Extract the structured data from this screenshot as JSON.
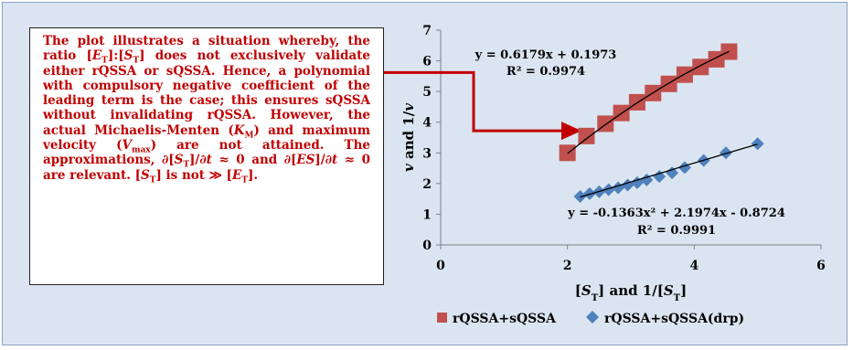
{
  "note": {
    "parts": [
      {
        "t": "The plot illustrates a situation whereby, the ratio ["
      },
      {
        "t": "E",
        "i": true
      },
      {
        "t": "T",
        "sub": true
      },
      {
        "t": "]:["
      },
      {
        "t": "S",
        "i": true
      },
      {
        "t": "T",
        "sub": true
      },
      {
        "t": "] does not exclusively validate either rQSSA or sQSSA. Hence, a polynomial with compulsory negative coefficient of the leading term is the case; this ensures sQSSA without invalidating rQSSA. However, the actual Michaelis-Menten ("
      },
      {
        "t": "K",
        "i": true
      },
      {
        "t": "M",
        "sub": true
      },
      {
        "t": ") and maximum velocity ("
      },
      {
        "t": "V",
        "i": true
      },
      {
        "t": "max",
        "sub": true
      },
      {
        "t": ") are not attained. The approximations, ∂["
      },
      {
        "t": "S",
        "i": true
      },
      {
        "t": "T",
        "sub": true
      },
      {
        "t": "]/∂"
      },
      {
        "t": "t",
        "i": true
      },
      {
        "t": " ≈ 0 and ∂["
      },
      {
        "t": "ES",
        "i": true
      },
      {
        "t": "]/∂"
      },
      {
        "t": "t",
        "i": true
      },
      {
        "t": " ≈ 0 are relevant. ["
      },
      {
        "t": "S",
        "i": true
      },
      {
        "t": "T",
        "sub": true
      },
      {
        "t": "] is not ≫ ["
      },
      {
        "t": "E",
        "i": true
      },
      {
        "t": "T",
        "sub": true
      },
      {
        "t": "]."
      }
    ]
  },
  "colors": {
    "background": "#dbe5f1",
    "note_text": "#c00000",
    "arrow": "#c00000",
    "series1": "#c0504d",
    "series2": "#4f81bd",
    "trendline": "#000000"
  },
  "chart_data": {
    "type": "scatter",
    "xlabel": "[S_T] and 1/[S_T]",
    "xlabel_parts": [
      {
        "t": "["
      },
      {
        "t": "S",
        "i": true
      },
      {
        "t": "T",
        "sub": true
      },
      {
        "t": "] and 1/["
      },
      {
        "t": "S",
        "i": true
      },
      {
        "t": "T",
        "sub": true
      },
      {
        "t": "]"
      }
    ],
    "ylabel": "v and 1/v",
    "ylabel_parts": [
      {
        "t": "v",
        "i": true
      },
      {
        "t": " and 1/"
      },
      {
        "t": "v",
        "i": true
      }
    ],
    "xlim": [
      0,
      6
    ],
    "ylim": [
      0,
      7
    ],
    "xticks": [
      0,
      2,
      4,
      6
    ],
    "yticks": [
      0,
      1,
      2,
      3,
      4,
      5,
      6,
      7
    ],
    "grid": false,
    "legend": "bottom",
    "series": [
      {
        "name": "rQSSA+sQSSA",
        "marker": "square",
        "x": [
          2.0,
          2.3,
          2.6,
          2.85,
          3.1,
          3.35,
          3.6,
          3.85,
          4.1,
          4.35,
          4.55
        ],
        "y": [
          3.0,
          3.55,
          3.95,
          4.3,
          4.65,
          4.95,
          5.25,
          5.55,
          5.8,
          6.05,
          6.3
        ],
        "trendline": {
          "kind": "polynomial",
          "coefficients": [
            -0.1363,
            2.1974,
            -0.8724
          ],
          "x_range": [
            2.0,
            4.55
          ],
          "equation": "y = -0.1363x² + 2.1974x - 0.8724",
          "r2": "R² = 0.9991"
        }
      },
      {
        "name": "rQSSA+sQSSA(drp)",
        "marker": "diamond",
        "x": [
          2.2,
          2.35,
          2.5,
          2.65,
          2.8,
          2.95,
          3.1,
          3.25,
          3.45,
          3.65,
          3.85,
          4.15,
          4.5,
          5.0
        ],
        "y": [
          1.58,
          1.67,
          1.73,
          1.8,
          1.86,
          1.95,
          2.03,
          2.12,
          2.23,
          2.35,
          2.52,
          2.75,
          3.0,
          3.3
        ],
        "trendline": {
          "kind": "linear",
          "coefficients": [
            0.6179,
            0.1973
          ],
          "x_range": [
            2.2,
            5.0
          ],
          "equation": "y = 0.6179x + 0.1973",
          "r2": "R² = 0.9974"
        }
      }
    ]
  }
}
